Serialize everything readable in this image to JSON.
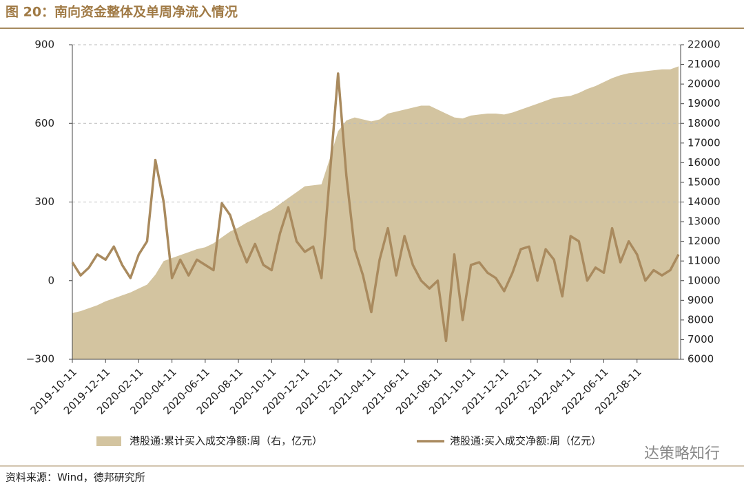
{
  "chart_data": {
    "type": "line",
    "title": "图 20：南向资金整体及单周净流入情况",
    "source": "资料来源：Wind，德邦研究所",
    "watermark": "达策略知行",
    "categories": [
      "2019-10-11",
      null,
      null,
      null,
      "2019-12-11",
      null,
      null,
      null,
      "2020-02-11",
      null,
      null,
      null,
      "2020-04-11",
      null,
      null,
      null,
      "2020-06-11",
      null,
      null,
      null,
      "2020-08-11",
      null,
      null,
      null,
      "2020-10-11",
      null,
      null,
      null,
      "2020-12-11",
      null,
      null,
      null,
      "2021-02-11",
      null,
      null,
      null,
      "2021-04-11",
      null,
      null,
      null,
      "2021-06-11",
      null,
      null,
      null,
      "2021-08-11",
      null,
      null,
      null,
      "2021-10-11",
      null,
      null,
      null,
      "2021-12-11",
      null,
      null,
      null,
      "2022-02-11",
      null,
      null,
      null,
      "2022-04-11",
      null,
      null,
      null,
      "2022-06-11",
      null,
      null,
      null,
      "2022-08-11",
      null,
      null,
      null,
      null,
      null
    ],
    "series": [
      {
        "name": "港股通:累计买入成交净额:周（右，亿元）",
        "type": "area",
        "axis": "y2",
        "color": "#d3c4a0",
        "values": [
          8350,
          8450,
          8600,
          8750,
          8950,
          9100,
          9250,
          9400,
          9600,
          9800,
          10300,
          11000,
          11150,
          11300,
          11450,
          11600,
          11700,
          11900,
          12200,
          12500,
          12700,
          12950,
          13150,
          13400,
          13600,
          13900,
          14200,
          14500,
          14800,
          14850,
          14900,
          16200,
          17600,
          18150,
          18300,
          18200,
          18100,
          18200,
          18500,
          18600,
          18700,
          18800,
          18900,
          18900,
          18700,
          18500,
          18300,
          18250,
          18400,
          18450,
          18500,
          18500,
          18450,
          18550,
          18700,
          18850,
          19000,
          19150,
          19300,
          19350,
          19400,
          19550,
          19750,
          19900,
          20100,
          20300,
          20450,
          20550,
          20600,
          20650,
          20700,
          20750,
          20750,
          20900
        ]
      },
      {
        "name": "港股通:买入成交净额:周（亿元）",
        "type": "line",
        "color": "#a98a5e",
        "values": [
          70,
          20,
          50,
          100,
          80,
          130,
          60,
          10,
          100,
          150,
          460,
          300,
          10,
          80,
          20,
          80,
          60,
          40,
          295,
          250,
          150,
          70,
          140,
          60,
          40,
          180,
          280,
          150,
          110,
          130,
          10,
          400,
          790,
          400,
          120,
          20,
          -120,
          80,
          200,
          20,
          170,
          60,
          0,
          -30,
          0,
          -230,
          100,
          -150,
          60,
          70,
          30,
          10,
          -40,
          30,
          120,
          130,
          0,
          120,
          80,
          -60,
          170,
          150,
          0,
          50,
          30,
          200,
          70,
          150,
          100,
          0,
          40,
          20,
          40,
          100
        ]
      }
    ],
    "ylim": [
      -300,
      900
    ],
    "yticks": [
      {
        "value": -300,
        "label": "−300"
      },
      0,
      300,
      600,
      900
    ],
    "y2lim": [
      6000,
      22000
    ],
    "y2ticks": [
      6000,
      7000,
      8000,
      9000,
      10000,
      11000,
      12000,
      13000,
      14000,
      15000,
      16000,
      17000,
      18000,
      19000,
      20000,
      21000,
      22000
    ],
    "grid": true
  }
}
